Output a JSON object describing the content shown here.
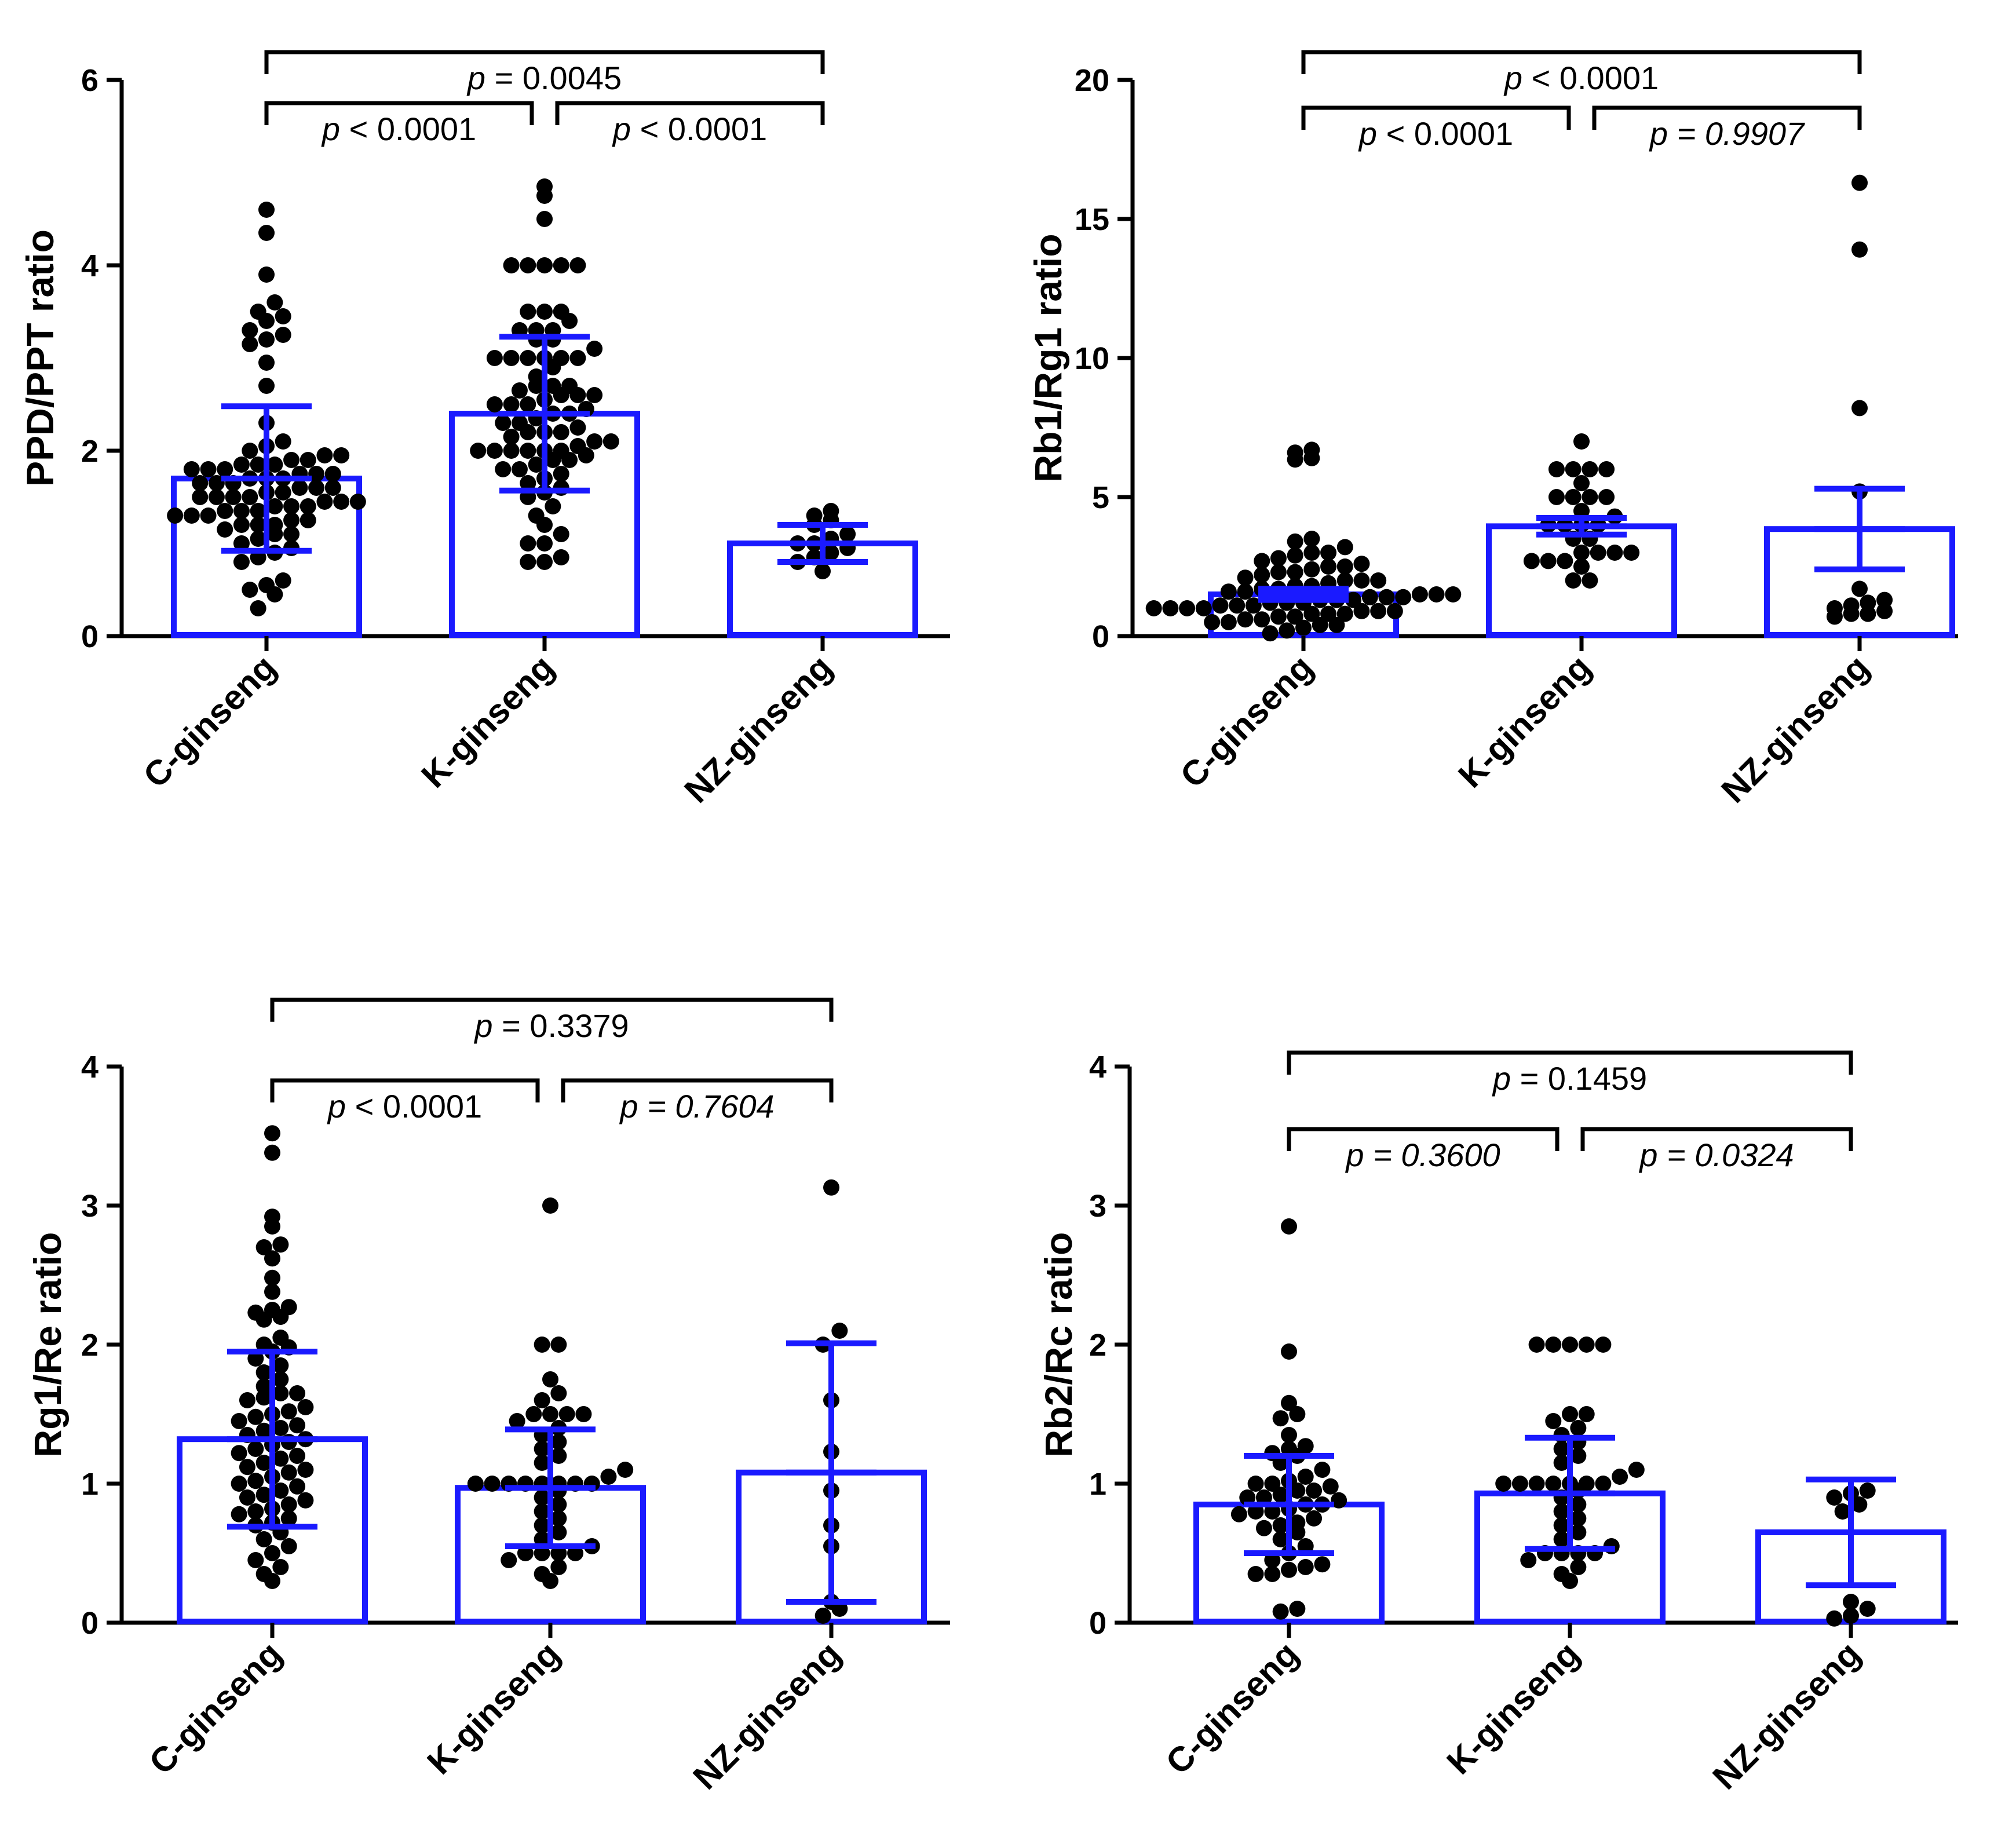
{
  "colors": {
    "bar_outline": "#1a1aff",
    "dots": "#000000",
    "axes": "#000000"
  },
  "chart_data": [
    {
      "type": "bar",
      "panel": "top-left",
      "ylabel": "PPD/PPT ratio",
      "ylim": [
        0,
        6
      ],
      "yticks": [
        "0",
        "2",
        "4",
        "6"
      ],
      "categories": [
        "C-ginseng",
        "K-ginseng",
        "NZ-ginseng"
      ],
      "means": [
        1.7,
        2.4,
        1.0
      ],
      "sd": [
        0.78,
        0.83,
        0.2
      ],
      "points": [
        [
          4.6,
          4.35,
          3.9,
          3.6,
          3.5,
          3.45,
          3.4,
          3.3,
          3.25,
          3.2,
          3.15,
          2.95,
          2.7,
          2.3,
          2.1,
          2.05,
          2.0,
          1.95,
          1.95,
          1.9,
          1.9,
          1.85,
          1.85,
          1.85,
          1.8,
          1.8,
          1.8,
          1.75,
          1.75,
          1.75,
          1.7,
          1.7,
          1.7,
          1.65,
          1.65,
          1.65,
          1.6,
          1.6,
          1.6,
          1.55,
          1.55,
          1.5,
          1.5,
          1.5,
          1.5,
          1.45,
          1.45,
          1.45,
          1.4,
          1.4,
          1.4,
          1.35,
          1.35,
          1.35,
          1.3,
          1.3,
          1.3,
          1.25,
          1.25,
          1.2,
          1.2,
          1.2,
          1.15,
          1.1,
          1.1,
          1.05,
          1.0,
          0.95,
          0.9,
          0.85,
          0.8,
          0.6,
          0.55,
          0.5,
          0.45,
          0.3
        ],
        [
          4.85,
          4.75,
          4.5,
          4.0,
          4.0,
          4.0,
          4.0,
          4.0,
          3.5,
          3.5,
          3.5,
          3.4,
          3.3,
          3.3,
          3.3,
          3.2,
          3.2,
          3.1,
          3.0,
          3.0,
          3.0,
          3.0,
          3.0,
          3.0,
          2.9,
          2.8,
          2.7,
          2.7,
          2.7,
          2.65,
          2.6,
          2.6,
          2.6,
          2.55,
          2.5,
          2.5,
          2.5,
          2.45,
          2.4,
          2.4,
          2.35,
          2.3,
          2.3,
          2.25,
          2.2,
          2.2,
          2.2,
          2.15,
          2.1,
          2.1,
          2.05,
          2.0,
          2.0,
          2.0,
          2.0,
          2.0,
          2.0,
          1.95,
          1.9,
          1.9,
          1.85,
          1.8,
          1.8,
          1.75,
          1.7,
          1.65,
          1.6,
          1.55,
          1.5,
          1.4,
          1.3,
          1.2,
          1.1,
          1.0,
          1.0,
          0.85,
          0.8,
          0.8
        ],
        [
          1.35,
          1.3,
          1.25,
          1.2,
          1.1,
          1.05,
          1.0,
          1.0,
          0.95,
          0.9,
          0.85,
          0.8,
          0.7
        ]
      ],
      "comparisons": [
        {
          "from": 0,
          "to": 2,
          "level": 6.3,
          "text": "= 0.0045",
          "italic_value": false
        },
        {
          "from": 0,
          "to": 1,
          "level": 5.75,
          "text": "< 0.0001",
          "italic_value": false
        },
        {
          "from": 1,
          "to": 2,
          "level": 5.75,
          "text": "< 0.0001",
          "italic_value": false
        }
      ]
    },
    {
      "type": "bar",
      "panel": "top-right",
      "ylabel": "Rb1/Rg1 ratio",
      "ylim": [
        0,
        20
      ],
      "yticks": [
        "0",
        "5",
        "10",
        "15",
        "20"
      ],
      "categories": [
        "C-ginseng",
        "K-ginseng",
        "NZ-ginseng"
      ],
      "means": [
        1.5,
        3.95,
        3.85
      ],
      "sd": [
        0.2,
        0.3,
        1.45
      ],
      "points": [
        [
          6.7,
          6.6,
          6.4,
          6.35,
          3.5,
          3.4,
          3.2,
          3.0,
          3.0,
          2.9,
          2.8,
          2.7,
          2.6,
          2.5,
          2.5,
          2.4,
          2.3,
          2.3,
          2.2,
          2.1,
          2.0,
          2.0,
          2.0,
          1.9,
          1.8,
          1.8,
          1.7,
          1.7,
          1.6,
          1.6,
          1.5,
          1.5,
          1.5,
          1.4,
          1.4,
          1.4,
          1.3,
          1.3,
          1.3,
          1.2,
          1.2,
          1.2,
          1.1,
          1.1,
          1.1,
          1.0,
          1.0,
          1.0,
          1.0,
          0.9,
          0.9,
          0.9,
          0.8,
          0.8,
          0.8,
          0.7,
          0.7,
          0.6,
          0.6,
          0.5,
          0.5,
          0.4,
          0.4,
          0.3,
          0.2,
          0.1
        ],
        [
          7.0,
          6.0,
          6.0,
          6.0,
          6.0,
          5.5,
          5.0,
          5.0,
          5.0,
          5.0,
          4.5,
          4.3,
          4.0,
          4.0,
          4.0,
          4.0,
          3.5,
          3.5,
          3.0,
          3.0,
          3.0,
          3.0,
          2.7,
          2.7,
          2.7,
          2.5,
          2.0,
          2.0
        ],
        [
          16.3,
          13.9,
          8.2,
          5.2,
          1.7,
          1.3,
          1.2,
          1.1,
          1.0,
          0.9,
          0.8,
          0.8,
          0.7
        ]
      ],
      "comparisons": [
        {
          "from": 0,
          "to": 2,
          "level": 21.0,
          "text": "< 0.0001",
          "italic_value": false
        },
        {
          "from": 0,
          "to": 1,
          "level": 19.0,
          "text": "< 0.0001",
          "italic_value": false
        },
        {
          "from": 1,
          "to": 2,
          "level": 19.0,
          "text": "= 0.9907",
          "italic_value": true
        }
      ]
    },
    {
      "type": "bar",
      "panel": "bottom-left",
      "ylabel": "Rg1/Re ratio",
      "ylim": [
        0,
        4
      ],
      "yticks": [
        "0",
        "1",
        "2",
        "3",
        "4"
      ],
      "categories": [
        "C-ginseng",
        "K-ginseng",
        "NZ-ginseng"
      ],
      "means": [
        1.32,
        0.97,
        1.08
      ],
      "sd": [
        0.63,
        0.42,
        0.93
      ],
      "points": [
        [
          3.52,
          3.38,
          2.92,
          2.85,
          2.72,
          2.7,
          2.62,
          2.48,
          2.38,
          2.27,
          2.25,
          2.23,
          2.2,
          2.18,
          2.05,
          2.0,
          1.98,
          1.95,
          1.9,
          1.85,
          1.8,
          1.75,
          1.7,
          1.65,
          1.65,
          1.62,
          1.6,
          1.55,
          1.52,
          1.5,
          1.48,
          1.45,
          1.42,
          1.4,
          1.38,
          1.35,
          1.32,
          1.3,
          1.28,
          1.25,
          1.22,
          1.2,
          1.18,
          1.15,
          1.12,
          1.1,
          1.08,
          1.05,
          1.02,
          1.0,
          0.98,
          0.95,
          0.92,
          0.9,
          0.88,
          0.85,
          0.82,
          0.8,
          0.78,
          0.75,
          0.72,
          0.7,
          0.65,
          0.6,
          0.55,
          0.5,
          0.45,
          0.4,
          0.35,
          0.3
        ],
        [
          3.0,
          2.0,
          2.0,
          1.75,
          1.65,
          1.6,
          1.5,
          1.5,
          1.5,
          1.5,
          1.45,
          1.4,
          1.35,
          1.3,
          1.25,
          1.2,
          1.15,
          1.1,
          1.05,
          1.0,
          1.0,
          1.0,
          1.0,
          1.0,
          1.0,
          1.0,
          1.0,
          0.95,
          0.9,
          0.85,
          0.8,
          0.75,
          0.7,
          0.65,
          0.6,
          0.55,
          0.5,
          0.5,
          0.5,
          0.5,
          0.45,
          0.4,
          0.35,
          0.3
        ],
        [
          3.13,
          2.1,
          2.0,
          1.6,
          1.23,
          0.95,
          0.7,
          0.55,
          0.15,
          0.1,
          0.05
        ]
      ],
      "comparisons": [
        {
          "from": 0,
          "to": 2,
          "level": 4.48,
          "text": "= 0.3379",
          "italic_value": false
        },
        {
          "from": 0,
          "to": 1,
          "level": 3.9,
          "text": "< 0.0001",
          "italic_value": false
        },
        {
          "from": 1,
          "to": 2,
          "level": 3.9,
          "text": "= 0.7604",
          "italic_value": true
        }
      ]
    },
    {
      "type": "bar",
      "panel": "bottom-right",
      "ylabel": "Rb2/Rc ratio",
      "ylim": [
        0,
        4
      ],
      "yticks": [
        "0",
        "1",
        "2",
        "3",
        "4"
      ],
      "categories": [
        "C-ginseng",
        "K-ginseng",
        "NZ-ginseng"
      ],
      "means": [
        0.85,
        0.93,
        0.65
      ],
      "sd": [
        0.35,
        0.4,
        0.38
      ],
      "points": [
        [
          2.85,
          1.95,
          1.58,
          1.5,
          1.47,
          1.35,
          1.27,
          1.25,
          1.22,
          1.2,
          1.15,
          1.1,
          1.05,
          1.02,
          1.0,
          1.0,
          0.98,
          0.95,
          0.95,
          0.92,
          0.9,
          0.9,
          0.88,
          0.85,
          0.85,
          0.82,
          0.8,
          0.8,
          0.78,
          0.75,
          0.72,
          0.7,
          0.68,
          0.65,
          0.6,
          0.55,
          0.5,
          0.45,
          0.42,
          0.4,
          0.38,
          0.35,
          0.35,
          0.1,
          0.08
        ],
        [
          2.0,
          2.0,
          2.0,
          2.0,
          2.0,
          1.5,
          1.5,
          1.45,
          1.4,
          1.35,
          1.3,
          1.25,
          1.2,
          1.15,
          1.1,
          1.05,
          1.0,
          1.0,
          1.0,
          1.0,
          1.0,
          1.0,
          1.0,
          0.95,
          0.9,
          0.85,
          0.8,
          0.75,
          0.7,
          0.65,
          0.6,
          0.55,
          0.5,
          0.5,
          0.5,
          0.5,
          0.45,
          0.4,
          0.35,
          0.3
        ],
        [
          0.95,
          0.93,
          0.9,
          0.85,
          0.8,
          0.15,
          0.1,
          0.05,
          0.03
        ]
      ],
      "comparisons": [
        {
          "from": 0,
          "to": 2,
          "level": 4.1,
          "text": "= 0.1459",
          "italic_value": false
        },
        {
          "from": 0,
          "to": 1,
          "level": 3.55,
          "text": "= 0.3600",
          "italic_value": true
        },
        {
          "from": 1,
          "to": 2,
          "level": 3.55,
          "text": "= 0.0324",
          "italic_value": true
        }
      ]
    }
  ]
}
